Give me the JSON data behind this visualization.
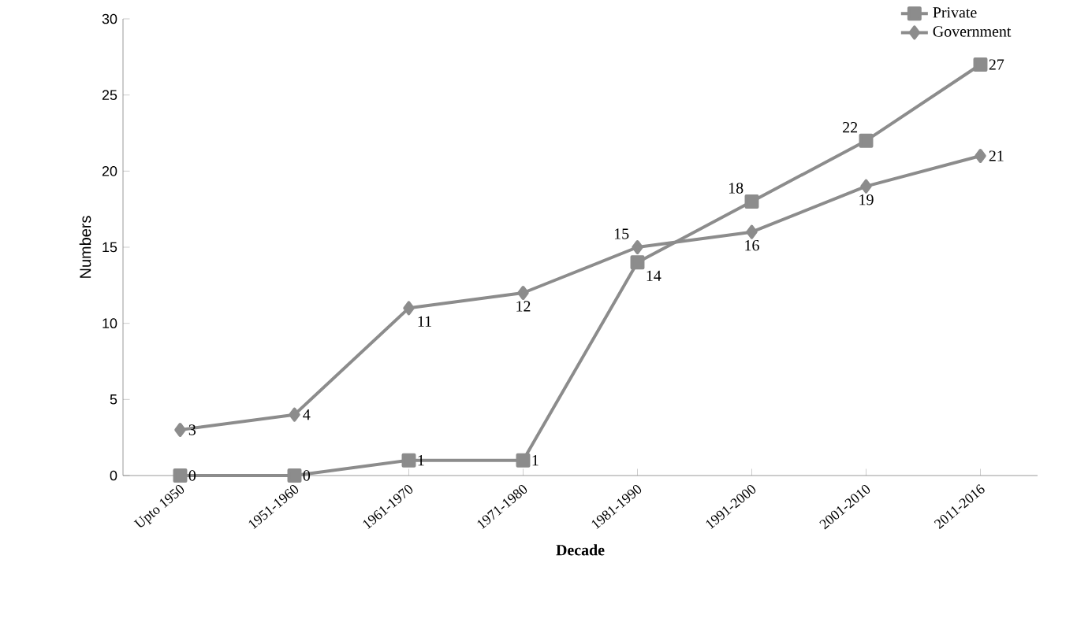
{
  "chart_data": {
    "type": "line",
    "xlabel": "Decade",
    "ylabel": "Numbers",
    "categories": [
      "Upto 1950",
      "1951-1960",
      "1961-1970",
      "1971-1980",
      "1981-1990",
      "1991-2000",
      "2001-2010",
      "2011-2016"
    ],
    "series": [
      {
        "name": "Private",
        "color": "#8c8c8c",
        "marker": "square",
        "values": [
          0,
          0,
          1,
          1,
          14,
          18,
          22,
          27
        ]
      },
      {
        "name": "Government",
        "color": "#8c8c8c",
        "marker": "diamond",
        "values": [
          3,
          4,
          11,
          12,
          15,
          16,
          19,
          21
        ]
      }
    ],
    "ylim": [
      0,
      30
    ],
    "yticks": [
      0,
      5,
      10,
      15,
      20,
      25,
      30
    ],
    "data_labels": true,
    "legend": "top right",
    "grid": false,
    "line_style": "solid"
  }
}
